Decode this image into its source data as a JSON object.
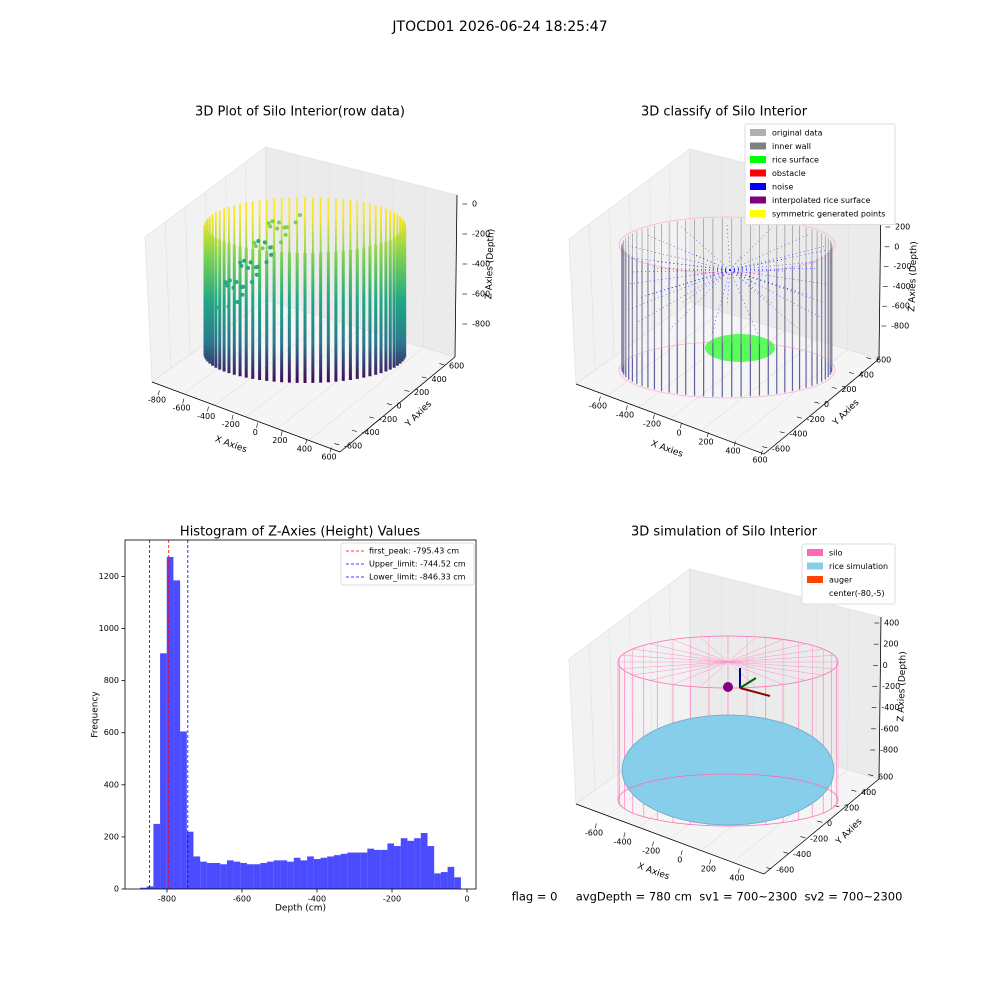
{
  "title": "JTOCD01 2026-06-24 18:25:47",
  "footer": "flag = 0     avgDepth = 780 cm  sv1 = 700~2300  sv2 = 700~2300",
  "chart_data": [
    {
      "type": "scatter3d",
      "title": "3D Plot of Silo Interior(row data)",
      "xlabel": "X Axies",
      "ylabel": "Y Axies",
      "zlabel": "Z Axies (Depth)",
      "xticks": [
        -800,
        -600,
        -400,
        -200,
        0,
        200,
        400,
        600
      ],
      "yticks": [
        -600,
        -400,
        -200,
        0,
        200,
        400,
        600
      ],
      "zticks": [
        0,
        -200,
        -400,
        -600,
        -800
      ]
    },
    {
      "type": "classify3d",
      "title": "3D classify of Silo Interior",
      "xlabel": "X Axies",
      "ylabel": "Y Axies",
      "zlabel": "Z Axies (Depth)",
      "xticks": [
        -600,
        -400,
        -200,
        0,
        200,
        400,
        600
      ],
      "yticks": [
        -600,
        -400,
        -200,
        0,
        200,
        400,
        600
      ],
      "zticks": [
        200,
        0,
        -200,
        -400,
        -600,
        -800
      ],
      "legend": [
        {
          "label": "original data",
          "color": "#b0b0b0"
        },
        {
          "label": "inner wall",
          "color": "#808080"
        },
        {
          "label": "rice surface",
          "color": "#00ff00"
        },
        {
          "label": "obstacle",
          "color": "#ff0000"
        },
        {
          "label": "noise",
          "color": "#0000ff"
        },
        {
          "label": "interpolated rice surface",
          "color": "#800080"
        },
        {
          "label": "symmetric generated points",
          "color": "#ffff00"
        }
      ]
    },
    {
      "type": "histogram",
      "title": "Histogram of Z-Axies (Height) Values",
      "xlabel": "Depth (cm)",
      "ylabel": "Frequency",
      "color": "#0000ff",
      "bins": [
        -872,
        -854.2,
        -836.3,
        -818.5,
        -800.7,
        -782.9,
        -765.0,
        -747.2,
        -729.4,
        -711.5,
        -693.7,
        -675.9,
        -658.0,
        -640.2,
        -622.4,
        -604.6,
        -586.7,
        -568.9,
        -551.1,
        -533.2,
        -515.4,
        -497.6,
        -479.7,
        -461.9,
        -444.1,
        -426.3,
        -408.4,
        -390.6,
        -372.8,
        -354.9,
        -337.1,
        -319.3,
        -301.4,
        -283.6,
        -265.8,
        -248.0,
        -230.1,
        -212.3,
        -194.5,
        -176.6,
        -158.8,
        -141.0,
        -123.1,
        -105.3,
        -87.5,
        -69.7,
        -51.8,
        -34.0,
        -16.2
      ],
      "values": [
        5,
        10,
        250,
        905,
        1275,
        1185,
        605,
        220,
        125,
        105,
        100,
        100,
        95,
        110,
        105,
        100,
        95,
        95,
        100,
        105,
        110,
        110,
        105,
        120,
        110,
        125,
        115,
        120,
        125,
        130,
        135,
        140,
        140,
        140,
        155,
        150,
        150,
        175,
        165,
        195,
        185,
        195,
        215,
        165,
        60,
        65,
        85,
        45
      ],
      "xlim": [
        -912,
        24
      ],
      "ylim": [
        0,
        1340
      ],
      "xticks": [
        -800,
        -600,
        -400,
        -200,
        0
      ],
      "yticks": [
        0,
        200,
        400,
        600,
        800,
        1000,
        1200
      ],
      "lines": [
        {
          "label": "first_peak: -795.43 cm",
          "value": -795.43,
          "color": "#ff0000"
        },
        {
          "label": "Upper_limit: -744.52 cm",
          "value": -744.52,
          "color": "#0000ff"
        },
        {
          "label": "Lower_limit: -846.33 cm",
          "value": -846.33,
          "color": "#0000ff"
        }
      ]
    },
    {
      "type": "surface3d",
      "title": "3D simulation of Silo Interior",
      "xlabel": "X Axies",
      "ylabel": "Y Axies",
      "zlabel": "Z Axies (Depth)",
      "xticks": [
        -600,
        -400,
        -200,
        0,
        200,
        400
      ],
      "yticks": [
        -600,
        -400,
        -200,
        0,
        200,
        400,
        600
      ],
      "zticks": [
        400,
        200,
        0,
        -200,
        -400,
        -600,
        -800
      ],
      "legend": [
        {
          "label": "silo",
          "color": "#ff69b4"
        },
        {
          "label": "rice simulation",
          "color": "#87ceeb"
        },
        {
          "label": "auger",
          "color": "#ff4500"
        },
        {
          "label": "center(-80,-5)",
          "color": "#ffffff"
        }
      ]
    }
  ]
}
